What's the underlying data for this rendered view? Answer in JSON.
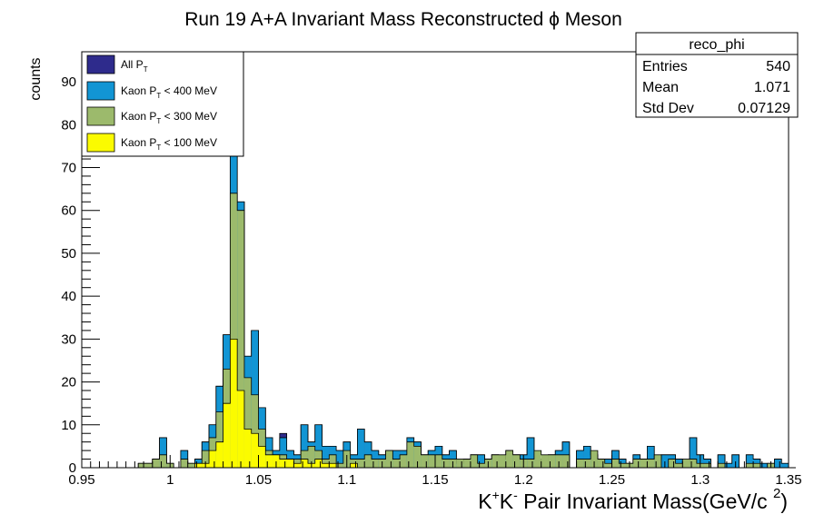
{
  "chart_data": {
    "type": "bar",
    "title": "Run 19 A+A Invariant Mass Reconstructed ϕ Meson",
    "xlabel": {
      "main": "K",
      "sup1": "+",
      "mid": "K",
      "sup2": "-",
      "rest": " Pair Invariant Mass(GeV/c ",
      "sup3": "2",
      "close": ")"
    },
    "ylabel": "counts",
    "xlim": [
      0.95,
      1.35
    ],
    "ylim": [
      0,
      97
    ],
    "bin_width": 0.004,
    "x_ticks": [
      "0.95",
      "1",
      "1.05",
      "1.1",
      "1.15",
      "1.2",
      "1.25",
      "1.3",
      "1.35"
    ],
    "y_ticks": [
      "0",
      "10",
      "20",
      "30",
      "40",
      "50",
      "60",
      "70",
      "80",
      "90"
    ],
    "grid": false,
    "legend_position": "top-left",
    "series": [
      {
        "name": "All P_T",
        "legend_main": "All P",
        "legend_sub": "T",
        "legend_rest": "",
        "color": "#2e2b8c",
        "values": [
          0,
          0,
          0,
          0,
          0,
          0,
          0,
          0,
          1,
          1,
          2,
          7,
          1,
          0,
          4,
          1,
          2,
          6,
          10,
          19,
          31,
          73,
          62,
          26,
          32,
          14,
          7,
          4,
          8,
          4,
          3,
          10,
          6,
          10,
          5,
          5,
          4,
          6,
          3,
          9,
          6,
          4,
          3,
          4,
          4,
          4,
          7,
          6,
          3,
          4,
          5,
          3,
          4,
          1,
          2,
          3,
          3,
          2,
          3,
          2,
          4,
          3,
          3,
          7,
          2,
          1,
          3,
          4,
          6,
          0,
          4,
          5,
          3,
          2,
          2,
          4,
          2,
          1,
          3,
          2,
          5,
          2,
          3,
          3,
          2,
          1,
          7,
          3,
          2,
          0,
          3,
          1,
          3,
          0,
          3,
          2,
          1,
          1,
          2,
          1,
          0
        ]
      },
      {
        "name": "Kaon P_T < 400 MeV",
        "legend_main": "Kaon P",
        "legend_sub": "T",
        "legend_rest": " < 400 MeV",
        "color": "#1295d4",
        "values": [
          0,
          0,
          0,
          0,
          0,
          0,
          0,
          0,
          1,
          1,
          2,
          7,
          1,
          0,
          4,
          1,
          2,
          6,
          10,
          19,
          31,
          73,
          62,
          26,
          32,
          14,
          7,
          4,
          7,
          4,
          3,
          10,
          6,
          10,
          5,
          5,
          4,
          6,
          3,
          9,
          6,
          4,
          3,
          4,
          4,
          4,
          7,
          6,
          3,
          4,
          5,
          3,
          4,
          1,
          2,
          3,
          3,
          2,
          3,
          2,
          4,
          3,
          3,
          7,
          2,
          1,
          3,
          4,
          6,
          0,
          4,
          5,
          3,
          2,
          2,
          4,
          2,
          1,
          3,
          2,
          5,
          2,
          3,
          3,
          2,
          1,
          7,
          3,
          2,
          0,
          3,
          1,
          3,
          0,
          3,
          2,
          1,
          1,
          2,
          1,
          0
        ]
      },
      {
        "name": "Kaon P_T < 300 MeV",
        "legend_main": "Kaon P",
        "legend_sub": "T",
        "legend_rest": " < 300 MeV",
        "color": "#9cba6c",
        "values": [
          0,
          0,
          0,
          0,
          0,
          0,
          0,
          0,
          1,
          1,
          2,
          3,
          1,
          0,
          2,
          1,
          1,
          4,
          7,
          13,
          23,
          64,
          60,
          21,
          17,
          9,
          4,
          3,
          3,
          2,
          2,
          4,
          5,
          4,
          2,
          3,
          1,
          4,
          2,
          2,
          3,
          2,
          2,
          4,
          2,
          3,
          6,
          5,
          3,
          3,
          3,
          2,
          2,
          2,
          2,
          3,
          1,
          2,
          3,
          3,
          4,
          3,
          2,
          2,
          4,
          3,
          3,
          3,
          3,
          0,
          2,
          2,
          4,
          2,
          1,
          2,
          1,
          1,
          2,
          2,
          2,
          3,
          0,
          2,
          1,
          2,
          2,
          1,
          1,
          0,
          1,
          0,
          0,
          0,
          1,
          1,
          0,
          1,
          0,
          0,
          0
        ]
      },
      {
        "name": "Kaon P_T < 100 MeV",
        "legend_main": "Kaon P",
        "legend_sub": "T",
        "legend_rest": " < 100 MeV",
        "color": "#fbfb00",
        "values": [
          0,
          0,
          0,
          0,
          0,
          0,
          0,
          0,
          0,
          0,
          0,
          0,
          0,
          0,
          0,
          0,
          1,
          1,
          4,
          6,
          15,
          30,
          18,
          9,
          8,
          5,
          3,
          3,
          2,
          2,
          1,
          2,
          1,
          2,
          1,
          1,
          0,
          0,
          1,
          0,
          0,
          0,
          0,
          0,
          0,
          0,
          0,
          0,
          0,
          0,
          0,
          0,
          0,
          0,
          0,
          0,
          0,
          0,
          0,
          0,
          0,
          0,
          0,
          0,
          0,
          0,
          0,
          0,
          0,
          0,
          0,
          0,
          0,
          0,
          0,
          0,
          0,
          0,
          0,
          0,
          0,
          0,
          0,
          0,
          0,
          0,
          0,
          0,
          0,
          0,
          0,
          0,
          0,
          0,
          0,
          0,
          0,
          0,
          0,
          0,
          0
        ]
      }
    ],
    "stats": {
      "title": "reco_phi",
      "rows": [
        {
          "label": "Entries",
          "value": "540"
        },
        {
          "label": "Mean",
          "value": "1.071"
        },
        {
          "label": "Std Dev",
          "value": "0.07129"
        }
      ]
    }
  }
}
